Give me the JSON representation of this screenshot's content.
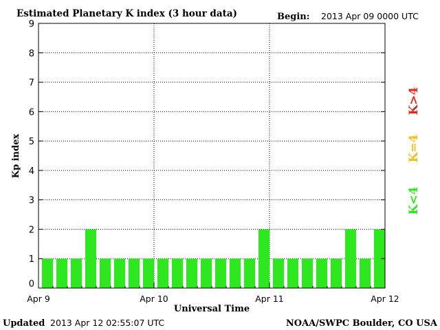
{
  "header": {
    "title": "Estimated Planetary K index (3 hour data)",
    "begin_label": "Begin:",
    "begin_value": "2013 Apr 09 0000 UTC"
  },
  "footer": {
    "updated_label": "Updated",
    "updated_value": "2013 Apr 12 02:55:07 UTC",
    "source": "NOAA/SWPC Boulder, CO USA"
  },
  "legend": {
    "high": {
      "label": "K>4",
      "color": "#e8261a"
    },
    "mid": {
      "label": "K=4",
      "color": "#f2c218"
    },
    "low": {
      "label": "K<4",
      "color": "#2ee81f"
    }
  },
  "chart_data": {
    "type": "bar",
    "title": "Estimated Planetary K index (3 hour data)",
    "xlabel": "Universal Time",
    "ylabel": "Kp index",
    "ylim": [
      0,
      9
    ],
    "yticks": [
      0,
      1,
      2,
      3,
      4,
      5,
      6,
      7,
      8,
      9
    ],
    "x_ticks": [
      {
        "label": "Apr 9",
        "day": 0
      },
      {
        "label": "Apr 10",
        "day": 1
      },
      {
        "label": "Apr 11",
        "day": 2
      },
      {
        "label": "Apr 12",
        "day": 3
      }
    ],
    "grid": true,
    "bar_color": "#2ee81f",
    "values": [
      1,
      1,
      1,
      2,
      1,
      1,
      1,
      1,
      1,
      1,
      1,
      1,
      1,
      1,
      1,
      2,
      1,
      1,
      1,
      1,
      1,
      2,
      1,
      2
    ]
  }
}
